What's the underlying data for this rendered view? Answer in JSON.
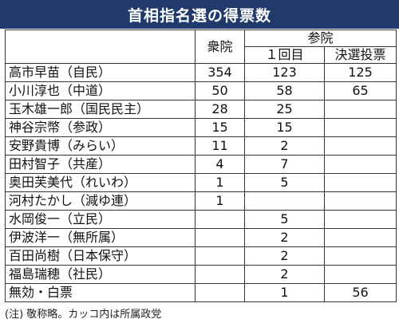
{
  "title": "首相指名選の得票数",
  "headers": {
    "shugiin": "衆院",
    "sangiin": "参院",
    "round1": "１回目",
    "runoff": "決選投票"
  },
  "rows": [
    {
      "name": "高市早苗（自民）",
      "shugiin": "354",
      "sangiin_round1": "123",
      "sangiin_runoff": "125"
    },
    {
      "name": "小川淳也（中道）",
      "shugiin": "50",
      "sangiin_round1": "58",
      "sangiin_runoff": "65"
    },
    {
      "name": "玉木雄一郎（国民民主）",
      "shugiin": "28",
      "sangiin_round1": "25",
      "sangiin_runoff": ""
    },
    {
      "name": "神谷宗幣（参政）",
      "shugiin": "15",
      "sangiin_round1": "15",
      "sangiin_runoff": ""
    },
    {
      "name": "安野貴博（みらい）",
      "shugiin": "11",
      "sangiin_round1": "2",
      "sangiin_runoff": ""
    },
    {
      "name": "田村智子（共産）",
      "shugiin": "4",
      "sangiin_round1": "7",
      "sangiin_runoff": ""
    },
    {
      "name": "奥田芙美代（れいわ）",
      "shugiin": "1",
      "sangiin_round1": "5",
      "sangiin_runoff": ""
    },
    {
      "name": "河村たかし（減ゆ連）",
      "shugiin": "1",
      "sangiin_round1": "",
      "sangiin_runoff": ""
    },
    {
      "name": "水岡俊一（立民）",
      "shugiin": "",
      "sangiin_round1": "5",
      "sangiin_runoff": ""
    },
    {
      "name": "伊波洋一（無所属）",
      "shugiin": "",
      "sangiin_round1": "2",
      "sangiin_runoff": ""
    },
    {
      "name": "百田尚樹（日本保守）",
      "shugiin": "",
      "sangiin_round1": "2",
      "sangiin_runoff": ""
    },
    {
      "name": "福島瑞穂（社民）",
      "shugiin": "",
      "sangiin_round1": "2",
      "sangiin_runoff": ""
    },
    {
      "name": "無効・白票",
      "shugiin": "",
      "sangiin_round1": "1",
      "sangiin_runoff": "56"
    }
  ],
  "note": "(注) 敬称略。カッコ内は所属政党",
  "colors": {
    "title_bg": "#1f3a6b",
    "title_text": "#ffffff",
    "border": "#333333"
  }
}
